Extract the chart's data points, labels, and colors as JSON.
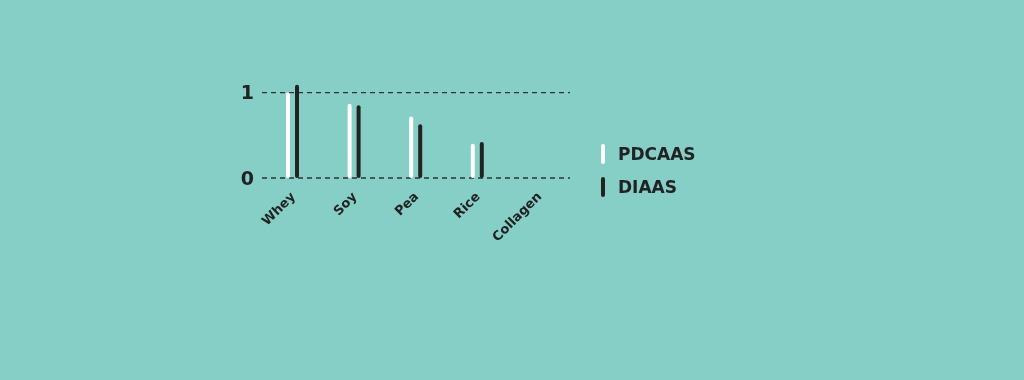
{
  "chart_data": {
    "type": "bar",
    "categories": [
      "Whey",
      "Soy",
      "Pea",
      "Rice",
      "Collagen"
    ],
    "series": [
      {
        "name": "PDCAAS",
        "color": "#ffffff",
        "values": [
          1.0,
          0.87,
          0.72,
          0.4,
          0
        ]
      },
      {
        "name": "DIAAS",
        "color": "#222222",
        "values": [
          1.09,
          0.85,
          0.63,
          0.42,
          0
        ]
      }
    ],
    "ylim": [
      0,
      1.1
    ],
    "yticks": [
      0,
      1
    ],
    "grid": "y",
    "legend": "right"
  }
}
